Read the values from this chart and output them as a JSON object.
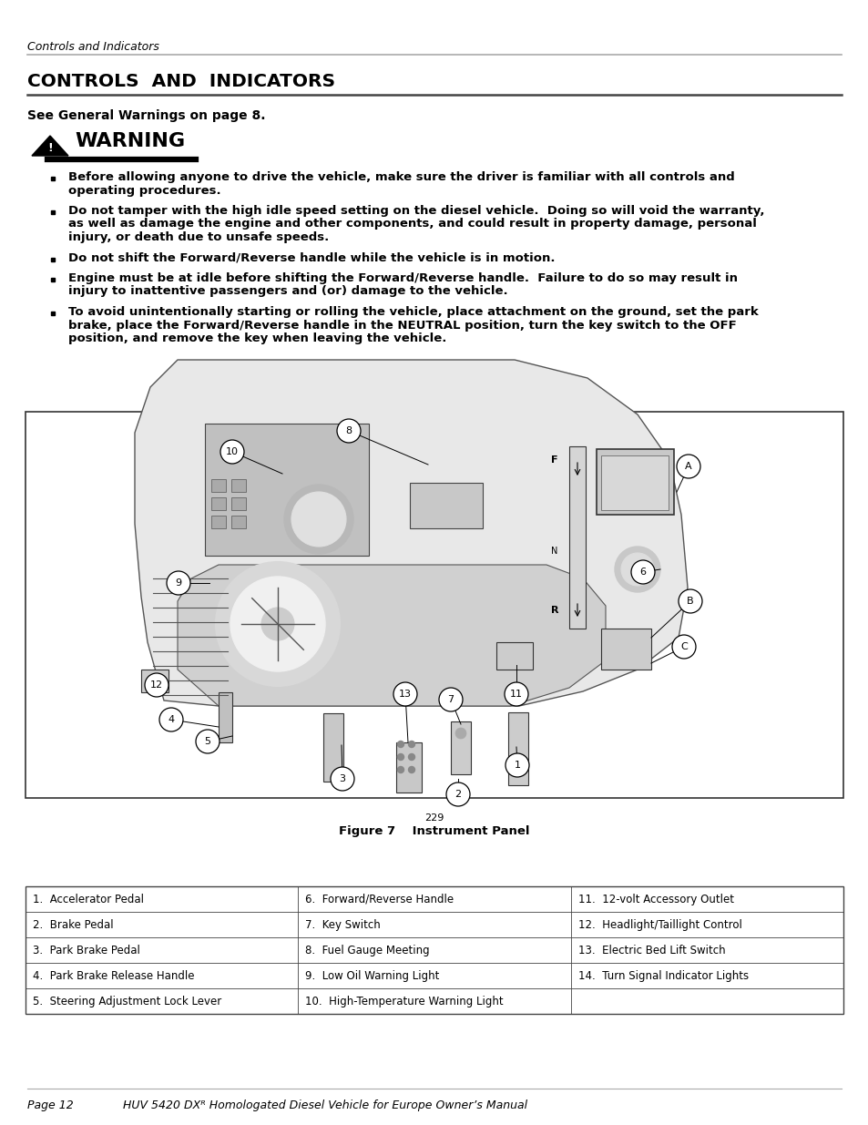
{
  "page_header_italic": "Controls and Indicators",
  "main_title": "CONTROLS  AND  INDICATORS",
  "see_general": "See General Warnings on page 8.",
  "warning_title": "WARNING",
  "bullet1_line1": "Before allowing anyone to drive the vehicle, make sure the driver is familiar with all controls and",
  "bullet1_line2": "operating procedures.",
  "bullet2_line1": "Do not tamper with the high idle speed setting on the diesel vehicle.  Doing so will void the warranty,",
  "bullet2_line2": "as well as damage the engine and other components, and could result in property damage, personal",
  "bullet2_line3": "injury, or death due to unsafe speeds.",
  "bullet3_line1": "Do not shift the Forward/Reverse handle while the vehicle is in motion.",
  "bullet4_line1": "Engine must be at idle before shifting the Forward/Reverse handle.  Failure to do so may result in",
  "bullet4_line2": "injury to inattentive passengers and (or) damage to the vehicle.",
  "bullet5_line1": "To avoid unintentionally starting or rolling the vehicle, place attachment on the ground, set the park",
  "bullet5_line2": "brake, place the Forward/Reverse handle in the NEUTRAL position, turn the key switch to the OFF",
  "bullet5_line3": "position, and remove the key when leaving the vehicle.",
  "figure_num": "229",
  "figure_caption": "Figure 7    Instrument Panel",
  "table_rows": [
    [
      "1.  Accelerator Pedal",
      "6.  Forward/Reverse Handle",
      "11.  12-volt Accessory Outlet"
    ],
    [
      "2.  Brake Pedal",
      "7.  Key Switch",
      "12.  Headlight/Taillight Control"
    ],
    [
      "3.  Park Brake Pedal",
      "8.  Fuel Gauge Meeting",
      "13.  Electric Bed Lift Switch"
    ],
    [
      "4.  Park Brake Release Handle",
      "9.  Low Oil Warning Light",
      "14.  Turn Signal Indicator Lights"
    ],
    [
      "5.  Steering Adjustment Lock Lever",
      "10.  High-Temperature Warning Light",
      ""
    ]
  ],
  "footer_left": "Page 12",
  "footer_right": "HUV 5420 DXᴿ Homologated Diesel Vehicle for Europe Owner’s Manual",
  "bg_color": "#ffffff"
}
